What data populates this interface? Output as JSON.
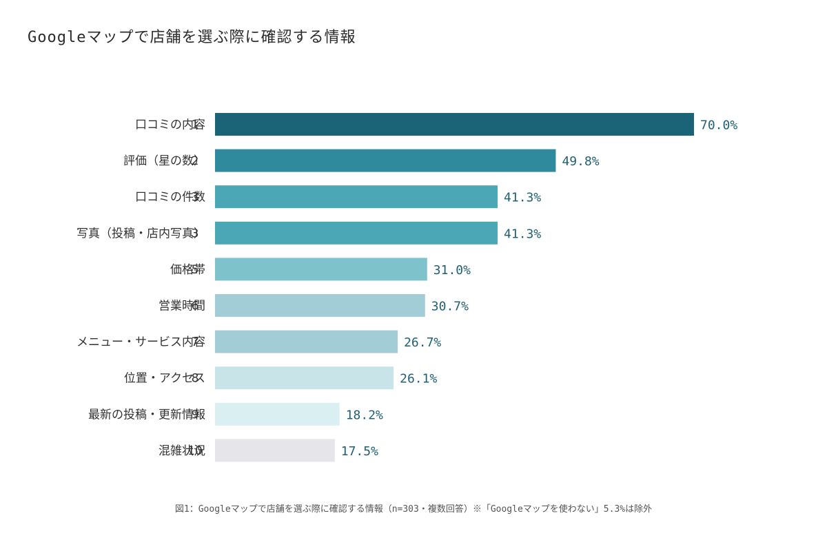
{
  "title": "Googleマップで店舗を選ぶ際に確認する情報",
  "caption": "図1：Googleマップで店舗を選ぶ際に確認する情報（n=303・複数回答）※「Googleマップを使わない」5.3%は除外",
  "colors": {
    "value_label": "#1f5f73"
  },
  "chart_data": {
    "type": "bar",
    "orientation": "horizontal",
    "categories": [
      "口コミの内容",
      "評価（星の数）",
      "口コミの件数",
      "写真（投稿・店内写真）",
      "価格帯",
      "営業時間",
      "メニュー・サービス内容",
      "位置・アクセス",
      "最新の投稿・更新情報",
      "混雑状況"
    ],
    "ranks": [
      "1",
      "2",
      "3",
      "3",
      "5",
      "6",
      "7",
      "8",
      "9",
      "10"
    ],
    "values": [
      70.0,
      49.8,
      41.3,
      41.3,
      31.0,
      30.7,
      26.7,
      26.1,
      18.2,
      17.5
    ],
    "value_labels": [
      "70.0%",
      "49.8%",
      "41.3%",
      "41.3%",
      "31.0%",
      "30.7%",
      "26.7%",
      "26.1%",
      "18.2%",
      "17.5%"
    ],
    "bar_colors": [
      "#1b6478",
      "#2e8a9c",
      "#4ba6b5",
      "#4ba6b5",
      "#7ec2cc",
      "#a2cdd6",
      "#a2cdd6",
      "#c9e4e9",
      "#daeff2",
      "#e6e6ea"
    ],
    "xlim": [
      0,
      70
    ],
    "grid": false,
    "legend": "none"
  }
}
